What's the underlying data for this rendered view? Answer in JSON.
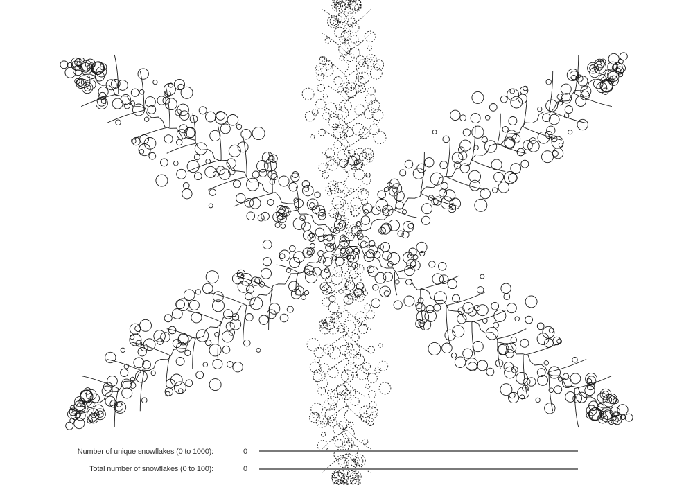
{
  "snowflake": {
    "stroke_color": "#1a1a1a",
    "background_color": "#ffffff",
    "arms": 6
  },
  "controls": {
    "unique": {
      "label": "Number of unique snowflakes (0 to 1000):",
      "value": "0",
      "level": 0
    },
    "total": {
      "label": "Total number of snowflakes (0 to 100):",
      "value": "0",
      "level": 0
    }
  }
}
